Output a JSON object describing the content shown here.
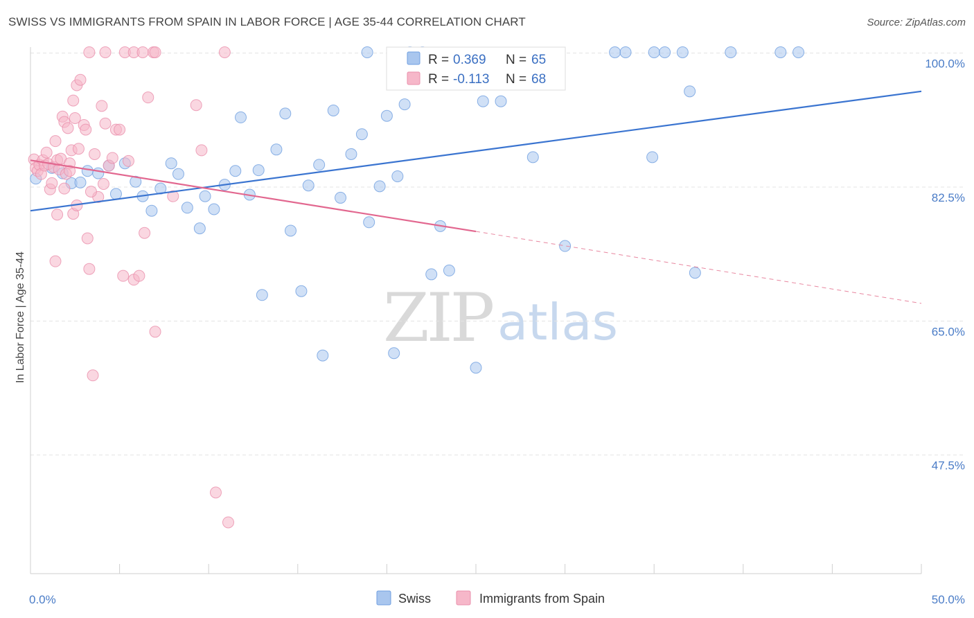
{
  "header": {
    "title": "SWISS VS IMMIGRANTS FROM SPAIN IN LABOR FORCE | AGE 35-44 CORRELATION CHART",
    "source": "Source: ZipAtlas.com"
  },
  "legend": {
    "rows": [
      {
        "r_label": "R = ",
        "r_value": "0.369",
        "n_label": "N = ",
        "n_value": "65",
        "color": "#a9c6ee"
      },
      {
        "r_label": "R = ",
        "r_value": "-0.113",
        "n_label": "N = ",
        "n_value": "68",
        "color": "#f6b7c9"
      }
    ]
  },
  "watermark": {
    "zip": "ZIP",
    "atlas": "atlas"
  },
  "chart_data": {
    "type": "scatter",
    "title": "SWISS VS IMMIGRANTS FROM SPAIN IN LABOR FORCE | AGE 35-44 CORRELATION CHART",
    "xlabel": "",
    "ylabel": "In Labor Force | Age 35-44",
    "xlim": [
      0,
      50
    ],
    "ylim": [
      32,
      101.5
    ],
    "x_tick_labels": [
      "0.0%",
      "50.0%"
    ],
    "y_ticks": [
      {
        "value": 100,
        "label": "100.0%"
      },
      {
        "value": 82.5,
        "label": "82.5%"
      },
      {
        "value": 65,
        "label": "65.0%"
      },
      {
        "value": 47.5,
        "label": "47.5%"
      }
    ],
    "grid": "horizontal dashed",
    "legend_position": "top-center",
    "series": [
      {
        "name": "Swiss",
        "color": "#6f9fe0",
        "fill": "#a9c6ee",
        "trend": {
          "x0": 0,
          "y0": 79.4,
          "x1": 50,
          "y1": 95.0
        },
        "points": [
          [
            0.3,
            83.6
          ],
          [
            1.2,
            85.0
          ],
          [
            1.8,
            84.3
          ],
          [
            2.3,
            83.0
          ],
          [
            2.8,
            83.1
          ],
          [
            3.2,
            84.6
          ],
          [
            3.8,
            84.3
          ],
          [
            4.4,
            85.3
          ],
          [
            4.8,
            81.6
          ],
          [
            5.3,
            85.6
          ],
          [
            5.9,
            83.2
          ],
          [
            6.3,
            81.3
          ],
          [
            6.8,
            79.4
          ],
          [
            7.3,
            82.3
          ],
          [
            7.9,
            85.6
          ],
          [
            8.3,
            84.2
          ],
          [
            8.8,
            79.8
          ],
          [
            9.5,
            77.1
          ],
          [
            9.8,
            81.3
          ],
          [
            10.3,
            79.6
          ],
          [
            10.9,
            82.8
          ],
          [
            11.5,
            84.6
          ],
          [
            11.8,
            91.6
          ],
          [
            12.3,
            81.5
          ],
          [
            12.8,
            84.7
          ],
          [
            13.0,
            68.4
          ],
          [
            13.8,
            87.4
          ],
          [
            14.3,
            92.1
          ],
          [
            14.6,
            76.8
          ],
          [
            15.2,
            68.9
          ],
          [
            15.6,
            82.7
          ],
          [
            16.2,
            85.4
          ],
          [
            16.4,
            60.5
          ],
          [
            17.0,
            92.5
          ],
          [
            17.4,
            81.1
          ],
          [
            18.0,
            86.8
          ],
          [
            18.6,
            89.4
          ],
          [
            19.0,
            77.9
          ],
          [
            19.6,
            82.6
          ],
          [
            20.0,
            91.8
          ],
          [
            20.4,
            60.8
          ],
          [
            20.6,
            83.9
          ],
          [
            21.0,
            93.3
          ],
          [
            21.3,
            100.1
          ],
          [
            22.0,
            100.1
          ],
          [
            22.5,
            71.1
          ],
          [
            23.0,
            77.4
          ],
          [
            23.5,
            71.6
          ],
          [
            25.0,
            58.9
          ],
          [
            25.4,
            93.7
          ],
          [
            26.4,
            93.7
          ],
          [
            28.2,
            86.4
          ],
          [
            30.0,
            74.8
          ],
          [
            32.8,
            100.1
          ],
          [
            33.4,
            100.1
          ],
          [
            34.9,
            86.4
          ],
          [
            35.0,
            100.1
          ],
          [
            35.6,
            100.1
          ],
          [
            36.6,
            100.1
          ],
          [
            37.0,
            95.0
          ],
          [
            37.3,
            71.3
          ],
          [
            39.3,
            100.1
          ],
          [
            42.1,
            100.1
          ],
          [
            43.1,
            100.1
          ],
          [
            18.9,
            100.1
          ]
        ]
      },
      {
        "name": "Immigrants from Spain",
        "color": "#ea8fab",
        "fill": "#f6b7c9",
        "trend": {
          "x0": 0,
          "y0": 86.0,
          "x1": 25,
          "y1": 76.7
        },
        "trend_extension": {
          "x0": 25,
          "y0": 76.7,
          "x1": 50,
          "y1": 67.3
        },
        "points": [
          [
            0.2,
            86.1
          ],
          [
            0.3,
            85.0
          ],
          [
            0.4,
            84.6
          ],
          [
            0.5,
            85.4
          ],
          [
            0.6,
            84.2
          ],
          [
            0.7,
            86.0
          ],
          [
            0.8,
            85.3
          ],
          [
            0.9,
            87.0
          ],
          [
            1.0,
            85.5
          ],
          [
            1.1,
            82.2
          ],
          [
            1.2,
            83.0
          ],
          [
            1.3,
            85.1
          ],
          [
            1.4,
            88.5
          ],
          [
            1.5,
            86.0
          ],
          [
            1.6,
            84.8
          ],
          [
            1.7,
            86.2
          ],
          [
            1.8,
            91.7
          ],
          [
            1.9,
            91.0
          ],
          [
            2.0,
            84.2
          ],
          [
            2.1,
            90.2
          ],
          [
            2.2,
            85.6
          ],
          [
            2.3,
            87.3
          ],
          [
            2.4,
            93.8
          ],
          [
            2.5,
            91.5
          ],
          [
            2.6,
            95.8
          ],
          [
            2.7,
            87.5
          ],
          [
            2.8,
            96.5
          ],
          [
            3.0,
            90.6
          ],
          [
            3.1,
            90.0
          ],
          [
            1.4,
            72.8
          ],
          [
            1.5,
            78.9
          ],
          [
            2.4,
            79.0
          ],
          [
            2.6,
            80.1
          ],
          [
            3.2,
            75.8
          ],
          [
            3.3,
            71.8
          ],
          [
            3.6,
            86.8
          ],
          [
            3.8,
            81.2
          ],
          [
            4.0,
            93.1
          ],
          [
            4.2,
            90.8
          ],
          [
            4.4,
            85.3
          ],
          [
            4.6,
            86.3
          ],
          [
            4.8,
            90.0
          ],
          [
            5.0,
            90.0
          ],
          [
            5.2,
            70.9
          ],
          [
            5.5,
            85.9
          ],
          [
            5.8,
            70.4
          ],
          [
            6.1,
            70.9
          ],
          [
            6.4,
            76.5
          ],
          [
            6.6,
            94.2
          ],
          [
            6.9,
            100.1
          ],
          [
            7.0,
            63.6
          ],
          [
            8.0,
            81.3
          ],
          [
            9.3,
            93.2
          ],
          [
            9.6,
            87.3
          ],
          [
            10.4,
            42.6
          ],
          [
            11.1,
            38.7
          ],
          [
            3.3,
            100.1
          ],
          [
            4.2,
            100.1
          ],
          [
            5.3,
            100.1
          ],
          [
            5.8,
            100.1
          ],
          [
            6.3,
            100.1
          ],
          [
            7.0,
            100.1
          ],
          [
            10.9,
            100.1
          ],
          [
            3.5,
            57.9
          ],
          [
            3.4,
            81.9
          ],
          [
            4.1,
            82.9
          ],
          [
            1.9,
            82.3
          ],
          [
            2.2,
            84.6
          ]
        ]
      }
    ]
  }
}
